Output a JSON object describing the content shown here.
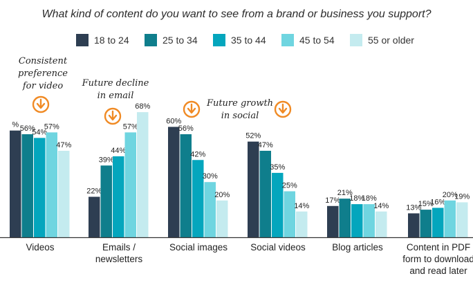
{
  "chart_data": {
    "type": "bar",
    "title": "What kind of content do you want to see from a brand or business you support?",
    "categories": [
      [
        "Videos"
      ],
      [
        "Emails /",
        "newsletters"
      ],
      [
        "Social images"
      ],
      [
        "Social videos"
      ],
      [
        "Blog articles"
      ],
      [
        "Content in PDF",
        "form to download",
        "and read later"
      ]
    ],
    "series": [
      {
        "name": "18 to 24",
        "color": "#2e3e52",
        "values": [
          58,
          22,
          60,
          52,
          17,
          13
        ]
      },
      {
        "name": "25 to 34",
        "color": "#0f7e8c",
        "values": [
          56,
          39,
          56,
          47,
          21,
          15
        ]
      },
      {
        "name": "35 to 44",
        "color": "#04a6bd",
        "values": [
          54,
          44,
          42,
          35,
          18,
          16
        ]
      },
      {
        "name": "45 to 54",
        "color": "#6fd5e0",
        "values": [
          57,
          57,
          30,
          25,
          18,
          20
        ]
      },
      {
        "name": "55 or older",
        "color": "#c4ebef",
        "values": [
          47,
          68,
          20,
          14,
          14,
          19
        ]
      }
    ],
    "data_labels": [
      [
        "%",
        "56%",
        "54%",
        "57%",
        "47%"
      ],
      [
        "22%",
        "39%",
        "44%",
        "57%",
        "68%"
      ],
      [
        "60%",
        "56%",
        "42%",
        "30%",
        "20%"
      ],
      [
        "52%",
        "47%",
        "35%",
        "25%",
        "14%"
      ],
      [
        "17%",
        "21%",
        "18%",
        "18%",
        "14%"
      ],
      [
        "13%",
        "15%",
        "16%",
        "20%",
        "19%"
      ]
    ],
    "ylim": [
      0,
      100
    ],
    "xlabel": "",
    "ylabel": "",
    "annotations": [
      {
        "lines": [
          "Consistent",
          "preference",
          "for video"
        ],
        "icon": "down-arrow-circle-icon",
        "category": "Videos"
      },
      {
        "lines": [
          "Future decline",
          "in email"
        ],
        "icon": "down-arrow-circle-icon",
        "category": "Emails / newsletters"
      },
      {
        "lines": [
          "Future growth",
          "in social"
        ],
        "icon": "down-arrow-circle-icon",
        "category": "Social images / Social videos"
      }
    ],
    "colors": {
      "accent_icon": "#f08a24",
      "baseline": "#333333"
    }
  }
}
